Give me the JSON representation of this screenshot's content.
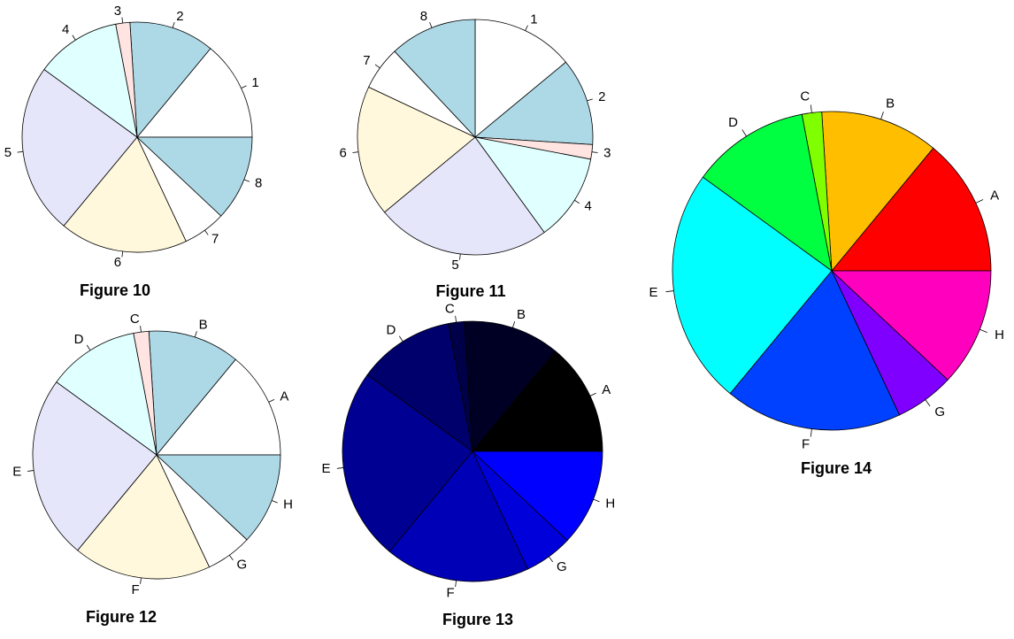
{
  "chart_data": [
    {
      "type": "pie",
      "title": "Figure 10",
      "clockwise": false,
      "labels": [
        "1",
        "2",
        "3",
        "4",
        "5",
        "6",
        "7",
        "8"
      ],
      "values": [
        14,
        12,
        2,
        12,
        24,
        18,
        6,
        12
      ],
      "colors": [
        "#ffffff",
        "#add8e6",
        "#ffe4e1",
        "#e0ffff",
        "#e6e6fa",
        "#fff8dc",
        "#ffffff",
        "#add8e6"
      ]
    },
    {
      "type": "pie",
      "title": "Figure 11",
      "clockwise": true,
      "labels": [
        "1",
        "2",
        "3",
        "4",
        "5",
        "6",
        "7",
        "8"
      ],
      "values": [
        14,
        12,
        2,
        12,
        24,
        18,
        6,
        12
      ],
      "colors": [
        "#ffffff",
        "#add8e6",
        "#ffe4e1",
        "#e0ffff",
        "#e6e6fa",
        "#fff8dc",
        "#ffffff",
        "#add8e6"
      ]
    },
    {
      "type": "pie",
      "title": "Figure 12",
      "clockwise": false,
      "labels": [
        "A",
        "B",
        "C",
        "D",
        "E",
        "F",
        "G",
        "H"
      ],
      "values": [
        14,
        12,
        2,
        12,
        24,
        18,
        6,
        12
      ],
      "colors": [
        "#ffffff",
        "#add8e6",
        "#ffe4e1",
        "#e0ffff",
        "#e6e6fa",
        "#fff8dc",
        "#ffffff",
        "#add8e6"
      ]
    },
    {
      "type": "pie",
      "title": "Figure 13",
      "clockwise": false,
      "labels": [
        "A",
        "B",
        "C",
        "D",
        "E",
        "F",
        "G",
        "H"
      ],
      "values": [
        14,
        12,
        2,
        12,
        24,
        18,
        6,
        12
      ],
      "colors": [
        "#000000",
        "#000024",
        "#000049",
        "#00006d",
        "#000092",
        "#0000b6",
        "#0000db",
        "#0000ff"
      ]
    },
    {
      "type": "pie",
      "title": "Figure 14",
      "clockwise": false,
      "labels": [
        "A",
        "B",
        "C",
        "D",
        "E",
        "F",
        "G",
        "H"
      ],
      "values": [
        14,
        12,
        2,
        12,
        24,
        18,
        6,
        12
      ],
      "colors": [
        "#ff0000",
        "#ffbf00",
        "#80ff00",
        "#00ff40",
        "#00ffff",
        "#0040ff",
        "#8000ff",
        "#ff00bf"
      ]
    }
  ]
}
